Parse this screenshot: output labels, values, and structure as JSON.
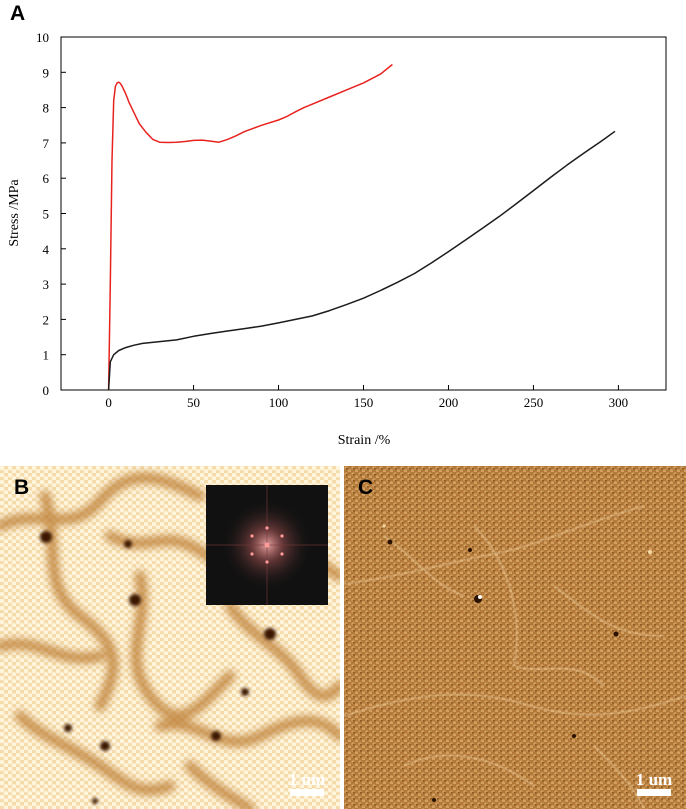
{
  "panel_labels": {
    "a": "A",
    "b": "B",
    "c": "C"
  },
  "chart_data": {
    "type": "line",
    "title": "",
    "xlabel": "Strain /%",
    "ylabel": "Stress /MPa",
    "xlim": [
      -28,
      328
    ],
    "ylim": [
      0,
      10
    ],
    "x_ticks": [
      0,
      50,
      100,
      150,
      200,
      250,
      300
    ],
    "y_ticks": [
      0,
      1,
      2,
      3,
      4,
      5,
      6,
      7,
      8,
      9,
      10
    ],
    "grid": false,
    "series": [
      {
        "color": "#e8231f",
        "x": [
          0,
          1,
          2,
          3,
          4,
          5,
          6,
          7,
          8,
          10,
          12,
          15,
          18,
          22,
          26,
          30,
          35,
          40,
          45,
          50,
          55,
          60,
          65,
          70,
          75,
          80,
          90,
          100,
          105,
          110,
          115,
          120,
          130,
          140,
          150,
          160,
          167
        ],
        "y": [
          0,
          3.0,
          6.5,
          8.2,
          8.6,
          8.7,
          8.72,
          8.68,
          8.6,
          8.4,
          8.15,
          7.85,
          7.55,
          7.3,
          7.1,
          7.02,
          7.01,
          7.02,
          7.04,
          7.07,
          7.08,
          7.05,
          7.02,
          7.1,
          7.2,
          7.32,
          7.5,
          7.65,
          7.75,
          7.88,
          8.0,
          8.1,
          8.3,
          8.5,
          8.7,
          8.95,
          9.22
        ]
      },
      {
        "color": "#1c1c1c",
        "x": [
          0,
          1,
          3,
          6,
          10,
          15,
          20,
          30,
          40,
          50,
          60,
          70,
          80,
          90,
          100,
          110,
          120,
          130,
          140,
          150,
          160,
          170,
          180,
          190,
          200,
          210,
          220,
          230,
          240,
          250,
          260,
          270,
          280,
          290,
          298
        ],
        "y": [
          0,
          0.8,
          1.0,
          1.12,
          1.2,
          1.27,
          1.32,
          1.37,
          1.42,
          1.52,
          1.6,
          1.67,
          1.74,
          1.81,
          1.9,
          2.0,
          2.1,
          2.25,
          2.42,
          2.6,
          2.82,
          3.05,
          3.3,
          3.6,
          3.92,
          4.25,
          4.58,
          4.92,
          5.28,
          5.65,
          6.02,
          6.38,
          6.72,
          7.05,
          7.33
        ]
      }
    ]
  },
  "micrographs": {
    "b": {
      "scale_label": "1 um",
      "colors": {
        "base": "#f2d49e",
        "domain_wall": "#a8661d",
        "defect": "#2c1200"
      }
    },
    "c": {
      "scale_label": "1 um",
      "colors": {
        "base": "#b57d3c",
        "boundary": "#f3d9a6",
        "defect": "#2b1200"
      }
    },
    "fft_inset": {
      "colors": {
        "background": "#111111",
        "spots": "#ff9a9a"
      }
    }
  }
}
